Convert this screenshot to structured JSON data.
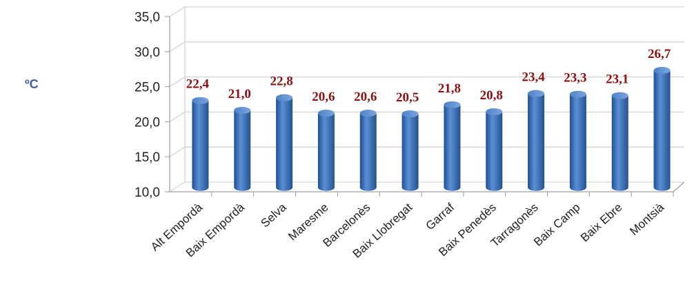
{
  "chart_data": {
    "type": "bar",
    "ylabel": "ºC",
    "ylim": [
      10,
      35
    ],
    "yticks": [
      "10,0",
      "15,0",
      "20,0",
      "25,0",
      "30,0",
      "35,0"
    ],
    "ytick_values": [
      10,
      15,
      20,
      25,
      30,
      35
    ],
    "categories": [
      "Alt Empordà",
      "Baix Empordà",
      "Selva",
      "Maresme",
      "Barcelonès",
      "Baix Llobregat",
      "Garraf",
      "Baix Penedès",
      "Tarragonès",
      "Baix Camp",
      "Baix Ebre",
      "Montsià"
    ],
    "values": [
      22.4,
      21.0,
      22.8,
      20.6,
      20.6,
      20.5,
      21.8,
      20.8,
      23.4,
      23.3,
      23.1,
      26.7
    ],
    "value_labels": [
      "22,4",
      "21,0",
      "22,8",
      "20,6",
      "20,6",
      "20,5",
      "21,8",
      "20,8",
      "23,4",
      "23,3",
      "23,1",
      "26,7"
    ],
    "grid": true,
    "legend": "none",
    "bar_color": "#3a6fb8",
    "label_color": "#8b1010"
  }
}
